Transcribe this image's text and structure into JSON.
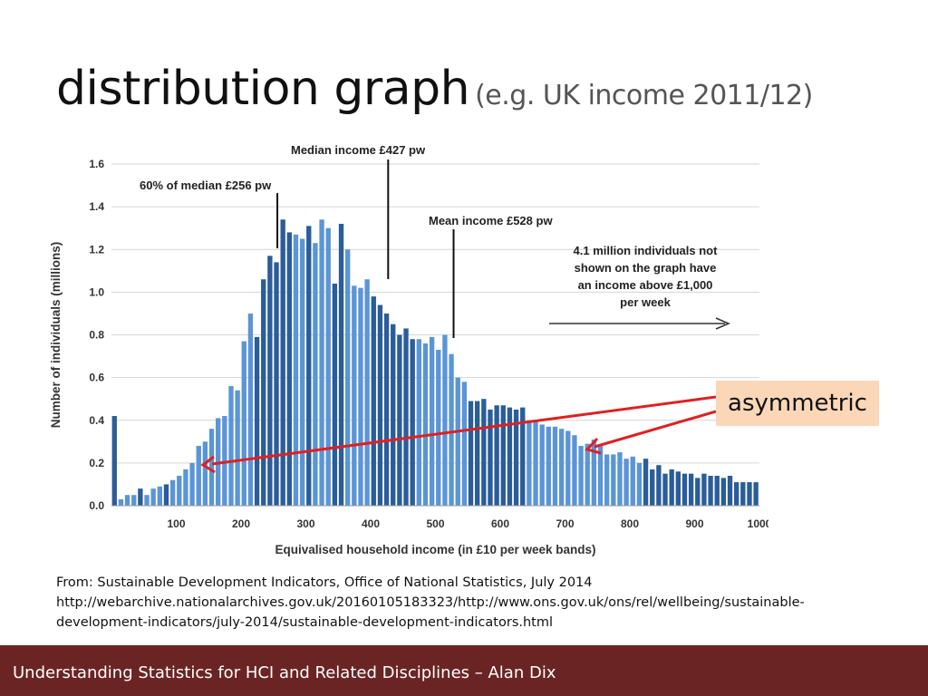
{
  "slide": {
    "title": "distribution graph",
    "subtitle": "(e.g. UK income 2011/12)",
    "source_line1": "From: Sustainable Development Indicators, Office of National Statistics, July 2014",
    "source_line2": "http://webarchive.nationalarchives.gov.uk/20160105183323/http://www.ons.gov.uk/ons/rel/wellbeing/sustainable-",
    "source_line3": "development-indicators/july-2014/sustainable-development-indicators.html",
    "callout": "asymmetric",
    "footer": "Understanding Statistics for HCI and Related Disciplines  –  Alan Dix"
  },
  "colors": {
    "bar_light": "#5b95d6",
    "bar_dark": "#2a5d99",
    "annotation_arrow": "#e02020",
    "callout_bg": "#fbd7b8",
    "footer_bg": "#6b2424"
  },
  "chart_data": {
    "type": "bar",
    "xlabel": "Equivalised household income (in £10 per week bands)",
    "ylabel": "Number of individuals (millions)",
    "xlim": [
      0,
      1000
    ],
    "ylim": [
      0,
      1.6
    ],
    "x_ticks": [
      100,
      200,
      300,
      400,
      500,
      600,
      700,
      800,
      900,
      1000
    ],
    "y_ticks": [
      0.0,
      0.2,
      0.4,
      0.6,
      0.8,
      1.0,
      1.2,
      1.4,
      1.6
    ],
    "y_tick_labels": [
      "0.0",
      "0.2",
      "0.4",
      "0.6",
      "0.8",
      "1.0",
      "1.2",
      "1.4",
      "1.6"
    ],
    "grid": true,
    "bin_width": 10,
    "x": [
      0,
      10,
      20,
      30,
      40,
      50,
      60,
      70,
      80,
      90,
      100,
      110,
      120,
      130,
      140,
      150,
      160,
      170,
      180,
      190,
      200,
      210,
      220,
      230,
      240,
      250,
      260,
      270,
      280,
      290,
      300,
      310,
      320,
      330,
      340,
      350,
      360,
      370,
      380,
      390,
      400,
      410,
      420,
      430,
      440,
      450,
      460,
      470,
      480,
      490,
      500,
      510,
      520,
      530,
      540,
      550,
      560,
      570,
      580,
      590,
      600,
      610,
      620,
      630,
      640,
      650,
      660,
      670,
      680,
      690,
      700,
      710,
      720,
      730,
      740,
      750,
      760,
      770,
      780,
      790,
      800,
      810,
      820,
      830,
      840,
      850,
      860,
      870,
      880,
      890,
      900,
      910,
      920,
      930,
      940,
      950,
      960,
      970,
      980,
      990
    ],
    "values": [
      0.42,
      0.03,
      0.05,
      0.05,
      0.08,
      0.05,
      0.08,
      0.09,
      0.1,
      0.12,
      0.14,
      0.17,
      0.2,
      0.28,
      0.3,
      0.36,
      0.41,
      0.42,
      0.56,
      0.54,
      0.77,
      0.9,
      0.79,
      1.06,
      1.17,
      1.14,
      1.34,
      1.28,
      1.27,
      1.25,
      1.31,
      1.23,
      1.34,
      1.3,
      1.04,
      1.32,
      1.2,
      1.03,
      1.02,
      1.06,
      0.98,
      0.94,
      0.9,
      0.85,
      0.8,
      0.83,
      0.78,
      0.78,
      0.76,
      0.79,
      0.73,
      0.8,
      0.71,
      0.6,
      0.58,
      0.49,
      0.49,
      0.5,
      0.45,
      0.47,
      0.47,
      0.46,
      0.45,
      0.46,
      0.4,
      0.4,
      0.38,
      0.37,
      0.37,
      0.36,
      0.35,
      0.33,
      0.28,
      0.29,
      0.31,
      0.28,
      0.24,
      0.24,
      0.25,
      0.22,
      0.23,
      0.2,
      0.22,
      0.17,
      0.19,
      0.15,
      0.17,
      0.16,
      0.15,
      0.15,
      0.13,
      0.15,
      0.14,
      0.14,
      0.13,
      0.14,
      0.11,
      0.11,
      0.11,
      0.11
    ],
    "series_tone": [
      "d",
      "l",
      "l",
      "l",
      "d",
      "l",
      "l",
      "l",
      "d",
      "l",
      "l",
      "l",
      "l",
      "l",
      "l",
      "l",
      "l",
      "l",
      "l",
      "l",
      "l",
      "l",
      "d",
      "d",
      "d",
      "d",
      "d",
      "d",
      "l",
      "l",
      "d",
      "l",
      "l",
      "l",
      "d",
      "d",
      "l",
      "l",
      "l",
      "l",
      "d",
      "d",
      "d",
      "d",
      "d",
      "d",
      "d",
      "l",
      "l",
      "l",
      "l",
      "l",
      "l",
      "l",
      "l",
      "d",
      "d",
      "d",
      "d",
      "d",
      "d",
      "d",
      "d",
      "d",
      "l",
      "l",
      "l",
      "l",
      "l",
      "l",
      "l",
      "l",
      "l",
      "l",
      "l",
      "l",
      "l",
      "l",
      "l",
      "l",
      "l",
      "l",
      "d",
      "d",
      "d",
      "d",
      "d",
      "d",
      "d",
      "d",
      "d",
      "d",
      "d",
      "d",
      "d",
      "d",
      "d",
      "d",
      "d",
      "d"
    ],
    "annotations": [
      {
        "text": "60% of median £256 pw",
        "x": 256
      },
      {
        "text": "Median income £427 pw",
        "x": 427
      },
      {
        "text": "Mean income £528 pw",
        "x": 528
      }
    ],
    "note_lines": [
      "4.1 million individuals not",
      "shown  on  the graph have",
      "an income above  £1,000",
      "per week"
    ]
  }
}
